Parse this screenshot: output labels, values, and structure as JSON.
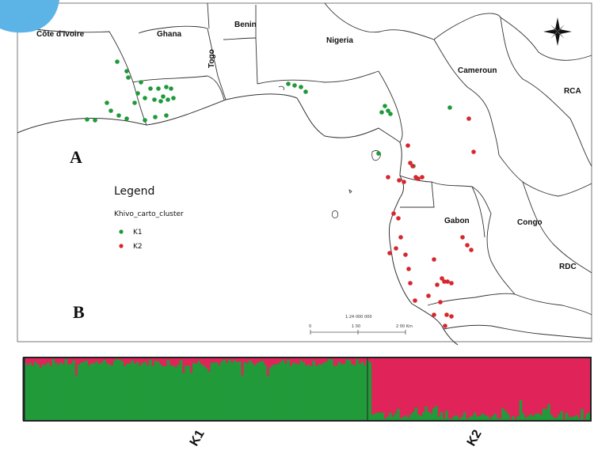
{
  "panel_labels": {
    "map": "A",
    "structure": "B"
  },
  "countries": {
    "cote_divoire": "Côte d'Ivoire",
    "ghana": "Ghana",
    "togo": "Togo",
    "benin": "Benin",
    "nigeria": "Nigeria",
    "cameroun": "Cameroun",
    "rca": "RCA",
    "gabon": "Gabon",
    "congo": "Congo",
    "rdc": "RDC"
  },
  "legend": {
    "title": "Legend",
    "layer": "Khivo_carto_cluster",
    "items": [
      {
        "label": "K1",
        "color": "#1e9a3a"
      },
      {
        "label": "K2",
        "color": "#d7262e"
      }
    ]
  },
  "scale_bar": {
    "ratio": "1:24 000 000",
    "ticks": [
      "0",
      "1 00",
      "2 00 Km"
    ]
  },
  "colors": {
    "k1": "#1e9a3a",
    "k2": "#d7262e",
    "k1_bar": "#219a3a",
    "k2_bar": "#e0245a"
  },
  "structure": {
    "clusters": [
      {
        "label": "K1",
        "n_individuals": 136
      },
      {
        "label": "K2",
        "n_individuals": 86
      }
    ]
  },
  "icons": {
    "north_arrow": "compass-rose-icon",
    "corner": "corner-tab"
  }
}
